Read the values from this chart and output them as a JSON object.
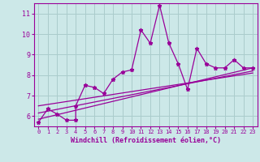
{
  "bg_color": "#cce8e8",
  "grid_color": "#aacccc",
  "line_color": "#990099",
  "marker_color": "#990099",
  "xlabel": "Windchill (Refroidissement éolien,°C)",
  "xlabel_color": "#990099",
  "tick_color": "#990099",
  "axis_color": "#990099",
  "scatter_x": [
    0,
    1,
    2,
    3,
    4,
    4,
    5,
    6,
    7,
    8,
    9,
    10,
    11,
    12,
    13,
    14,
    15,
    16,
    17,
    18,
    19,
    20,
    21,
    22,
    23
  ],
  "scatter_y": [
    5.7,
    6.35,
    6.1,
    5.8,
    5.8,
    6.5,
    7.5,
    7.4,
    7.1,
    7.8,
    8.15,
    8.25,
    10.2,
    9.55,
    11.4,
    9.55,
    8.55,
    7.3,
    9.3,
    8.55,
    8.35,
    8.35,
    8.75,
    8.35,
    8.35
  ],
  "line1_x": [
    0,
    23
  ],
  "line1_y": [
    5.85,
    8.35
  ],
  "line2_x": [
    0,
    23
  ],
  "line2_y": [
    6.15,
    8.2
  ],
  "line3_x": [
    0,
    23
  ],
  "line3_y": [
    6.5,
    8.1
  ],
  "ylim": [
    5.5,
    11.5
  ],
  "xlim": [
    -0.5,
    23.5
  ],
  "yticks": [
    6,
    7,
    8,
    9,
    10,
    11
  ],
  "xticks": [
    0,
    1,
    2,
    3,
    4,
    5,
    6,
    7,
    8,
    9,
    10,
    11,
    12,
    13,
    14,
    15,
    16,
    17,
    18,
    19,
    20,
    21,
    22,
    23
  ]
}
